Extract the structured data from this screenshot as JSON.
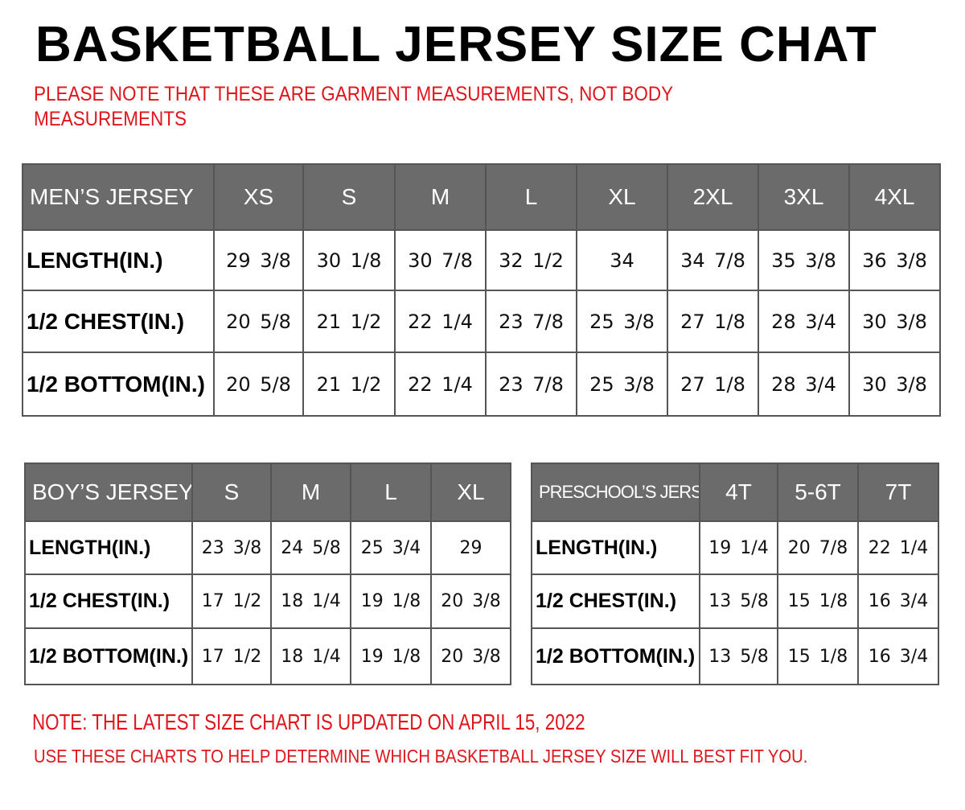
{
  "title": "BASKETBALL JERSEY SIZE CHAT",
  "subtitle_line1": "PLEASE NOTE THAT THESE ARE GARMENT MEASUREMENTS, NOT BODY",
  "subtitle_line2": "MEASUREMENTS",
  "note_updated": "NOTE: THE LATEST SIZE CHART IS UPDATED ON APRIL 15, 2022",
  "note_usage": "USE THESE CHARTS TO HELP DETERMINE WHICH  BASKETBALL JERSEY  SIZE WILL BEST FIT YOU.",
  "colors": {
    "header_bg": "#6b6b6b",
    "note_red": "#e0151b"
  },
  "tables": {
    "men": {
      "header": [
        "MEN’S JERSEY",
        "XS",
        "S",
        "M",
        "L",
        "XL",
        "2XL",
        "3XL",
        "4XL"
      ],
      "rows": [
        [
          "LENGTH(IN.)",
          "29  3/8",
          "30  1/8",
          "30  7/8",
          "32  1/2",
          "34",
          "34  7/8",
          "35  3/8",
          "36  3/8"
        ],
        [
          "1/2  CHEST(IN.)",
          "20  5/8",
          "21  1/2",
          "22  1/4",
          "23  7/8",
          "25  3/8",
          "27  1/8",
          "28  3/4",
          "30  3/8"
        ],
        [
          "1/2  BOTTOM(IN.)",
          "20  5/8",
          "21  1/2",
          "22  1/4",
          "23  7/8",
          "25  3/8",
          "27  1/8",
          "28  3/4",
          "30  3/8"
        ]
      ]
    },
    "boy": {
      "header": [
        "BOY’S JERSEY",
        "S",
        "M",
        "L",
        "XL"
      ],
      "rows": [
        [
          "LENGTH(IN.)",
          "23  3/8",
          "24  5/8",
          "25  3/4",
          "29"
        ],
        [
          "1/2  CHEST(IN.)",
          "17  1/2",
          "18  1/4",
          "19  1/8",
          "20  3/8"
        ],
        [
          "1/2  BOTTOM(IN.)",
          "17  1/2",
          "18  1/4",
          "19  1/8",
          "20  3/8"
        ]
      ]
    },
    "pre": {
      "header": [
        "PRESCHOOL’S JERSEY",
        "4T",
        "5-6T",
        "7T"
      ],
      "rows": [
        [
          "LENGTH(IN.)",
          "19  1/4",
          "20  7/8",
          "22  1/4"
        ],
        [
          "1/2  CHEST(IN.)",
          "13  5/8",
          "15  1/8",
          "16  3/4"
        ],
        [
          "1/2  BOTTOM(IN.)",
          "13  5/8",
          "15  1/8",
          "16  3/4"
        ]
      ]
    }
  }
}
